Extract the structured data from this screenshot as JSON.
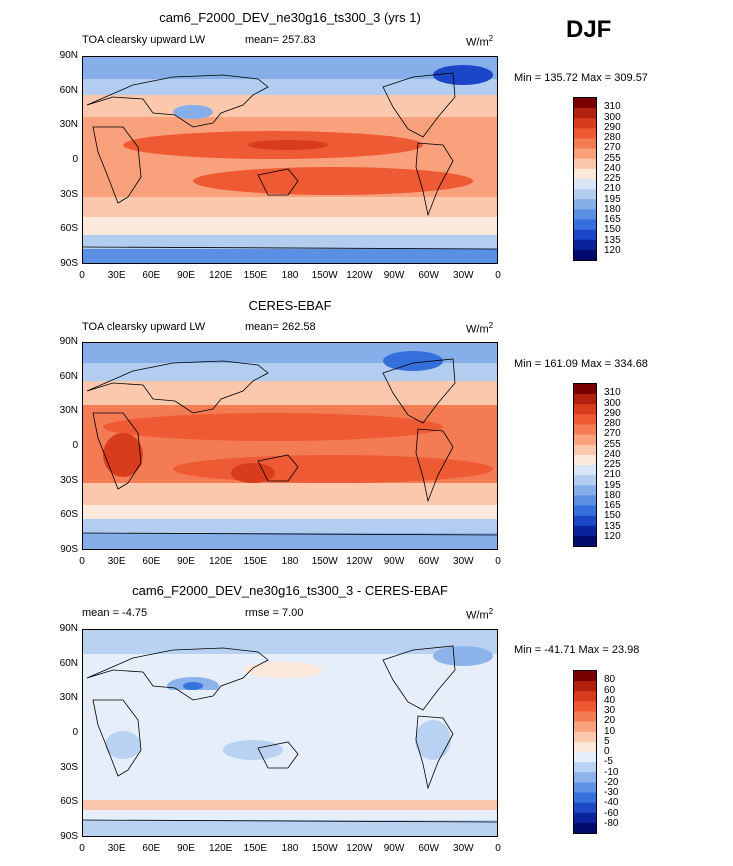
{
  "season": "DJF",
  "panels": [
    {
      "title": "cam6_F2000_DEV_ne30g16_ts300_3 (yrs 1)",
      "left_label": "TOA clearsky upward LW",
      "center_label": "mean= 257.83",
      "units": "W/m",
      "units_exp": "2",
      "stats": "Min = 135.72 Max = 309.57",
      "levels": [
        "310",
        "300",
        "290",
        "280",
        "270",
        "255",
        "240",
        "225",
        "210",
        "195",
        "180",
        "165",
        "150",
        "135",
        "120"
      ]
    },
    {
      "title": "CERES-EBAF",
      "left_label": "TOA clearsky upward LW",
      "center_label": "mean= 262.58",
      "units": "W/m",
      "units_exp": "2",
      "stats": "Min = 161.09 Max = 334.68",
      "levels": [
        "310",
        "300",
        "290",
        "280",
        "270",
        "255",
        "240",
        "225",
        "210",
        "195",
        "180",
        "165",
        "150",
        "135",
        "120"
      ]
    },
    {
      "title": "cam6_F2000_DEV_ne30g16_ts300_3 - CERES-EBAF",
      "left_label": "mean =   -4.75",
      "center_label": "rmse =    7.00",
      "units": "W/m",
      "units_exp": "2",
      "stats": "Min = -41.71 Max =  23.98",
      "levels": [
        "80",
        "60",
        "40",
        "30",
        "20",
        "10",
        "5",
        "0",
        "-5",
        "-10",
        "-20",
        "-30",
        "-40",
        "-60",
        "-80"
      ]
    }
  ],
  "lat_ticks": [
    "90N",
    "60N",
    "30N",
    "0",
    "30S",
    "60S",
    "90S"
  ],
  "lon_ticks": [
    "0",
    "30E",
    "60E",
    "90E",
    "120E",
    "150E",
    "180",
    "150W",
    "120W",
    "90W",
    "60W",
    "30W",
    "0"
  ],
  "colors_abs": [
    "#7a0000",
    "#b0200d",
    "#d93c1c",
    "#ee5a34",
    "#f47c55",
    "#f8a17c",
    "#fbc8ad",
    "#fde9dc",
    "#d9e6f7",
    "#b2cdf0",
    "#86afe9",
    "#5a8fe3",
    "#346fdc",
    "#1c46c8",
    "#0b239a",
    "#020b6e"
  ],
  "colors_diff": [
    "#7a0000",
    "#b0200d",
    "#d93c1c",
    "#ee5a34",
    "#f47c55",
    "#f8a17c",
    "#fbc8ad",
    "#fde9dc",
    "#e6eefa",
    "#b9d2f2",
    "#8db4ea",
    "#5f93e3",
    "#3672dc",
    "#1d48c8",
    "#0b239a",
    "#020b6e"
  ]
}
